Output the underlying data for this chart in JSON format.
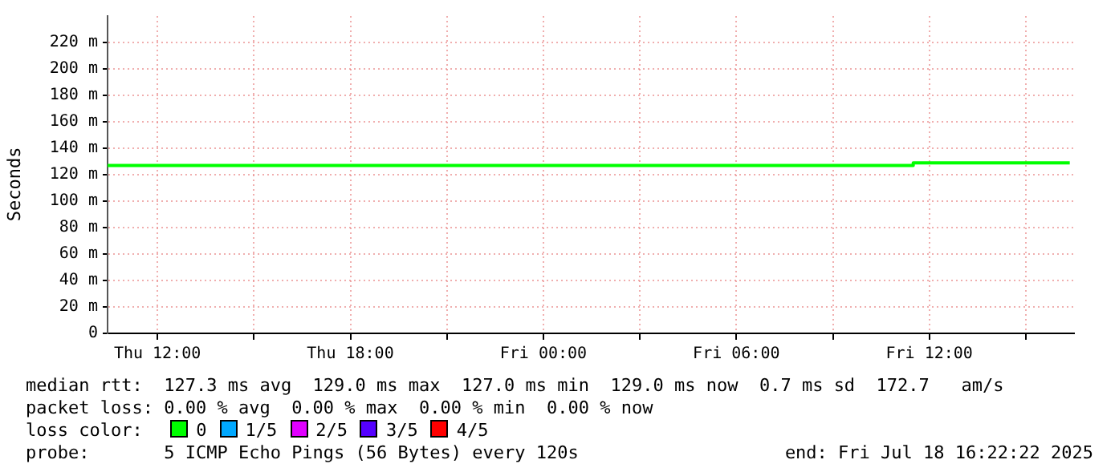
{
  "chart_data": {
    "type": "step",
    "ylabel": "Seconds",
    "x": [
      "2025-07-17T10:27",
      "2025-07-18T11:30",
      "2025-07-18T16:22"
    ],
    "series": [
      {
        "name": "0",
        "color": "#00ff00",
        "values": [
          127,
          129,
          129
        ]
      },
      {
        "name": "1/5",
        "color": "#00a8ff",
        "values": [
          null,
          null,
          null
        ]
      },
      {
        "name": "2/5",
        "color": "#e000ff",
        "values": [
          null,
          null,
          null
        ]
      },
      {
        "name": "3/5",
        "color": "#5500ff",
        "values": [
          null,
          null,
          null
        ]
      },
      {
        "name": "4/5",
        "color": "#ff0000",
        "values": [
          null,
          null,
          null
        ]
      }
    ],
    "legend_title": "loss color:",
    "legend": "bottom",
    "xlim": [
      "2025-07-17T10:27",
      "2025-07-18T16:30"
    ],
    "xticks": [
      {
        "value": "2025-07-17T12:00",
        "label": "Thu 12:00"
      },
      {
        "value": "2025-07-17T15:00",
        "label": null
      },
      {
        "value": "2025-07-17T18:00",
        "label": "Thu 18:00"
      },
      {
        "value": "2025-07-17T21:00",
        "label": null
      },
      {
        "value": "2025-07-18T00:00",
        "label": "Fri 00:00"
      },
      {
        "value": "2025-07-18T03:00",
        "label": null
      },
      {
        "value": "2025-07-18T06:00",
        "label": "Fri 06:00"
      },
      {
        "value": "2025-07-18T09:00",
        "label": null
      },
      {
        "value": "2025-07-18T12:00",
        "label": "Fri 12:00"
      },
      {
        "value": "2025-07-18T15:00",
        "label": null
      }
    ],
    "ylim": [
      0,
      240
    ],
    "yticks": [
      {
        "value": 0,
        "label": "0"
      },
      {
        "value": 20,
        "label": "20 m"
      },
      {
        "value": 40,
        "label": "40 m"
      },
      {
        "value": 60,
        "label": "60 m"
      },
      {
        "value": 80,
        "label": "80 m"
      },
      {
        "value": 100,
        "label": "100 m"
      },
      {
        "value": 120,
        "label": "120 m"
      },
      {
        "value": 140,
        "label": "140 m"
      },
      {
        "value": 160,
        "label": "160 m"
      },
      {
        "value": 180,
        "label": "180 m"
      },
      {
        "value": 200,
        "label": "200 m"
      },
      {
        "value": 220,
        "label": "220 m"
      }
    ],
    "grid": true,
    "line_style": "solid",
    "marker": "none",
    "annotations": [
      "median rtt:  127.3 ms avg  129.0 ms max  127.0 ms min  129.0 ms now  0.7 ms sd  172.7   am/s",
      "packet loss: 0.00 % avg  0.00 % max  0.00 % min  0.00 % now",
      "probe:       5 ICMP Echo Pings (56 Bytes) every 120s",
      "end: Fri Jul 18 16:22:22 2025"
    ]
  }
}
